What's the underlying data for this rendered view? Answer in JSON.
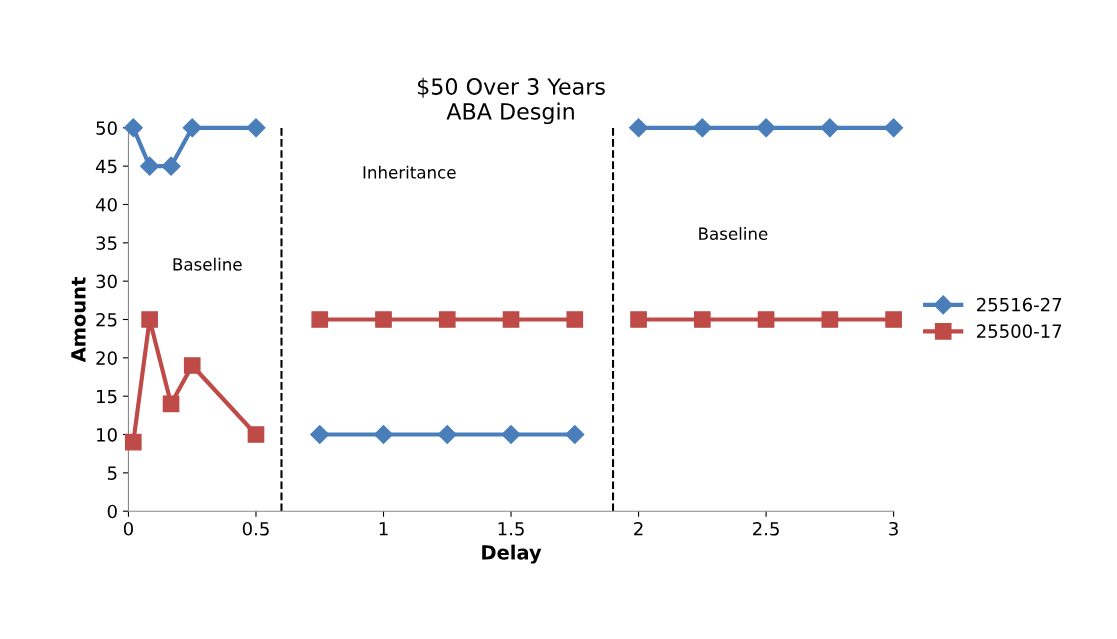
{
  "chart_data": {
    "type": "line",
    "title": "$50 Over 3 Years\nABA Desgin",
    "xlabel": "Delay",
    "ylabel": "Amount",
    "x": [
      0.019,
      0.083,
      0.167,
      0.25,
      0.5,
      0.62,
      0.75,
      1,
      1.25,
      1.5,
      1.75,
      1.88,
      2,
      2.25,
      2.5,
      2.75,
      3
    ],
    "series": [
      {
        "name": "25516-27",
        "color": "#4a7ebb",
        "marker": "diamond",
        "values": [
          50,
          45,
          45,
          50,
          50,
          null,
          10,
          10,
          10,
          10,
          10,
          null,
          50,
          50,
          50,
          50,
          50
        ]
      },
      {
        "name": "25500-17",
        "color": "#be4b48",
        "marker": "square",
        "values": [
          9,
          25,
          14,
          19,
          10,
          null,
          25,
          25,
          25,
          25,
          25,
          null,
          25,
          25,
          25,
          25,
          25
        ]
      }
    ],
    "xlim": [
      0,
      3
    ],
    "xticks": [
      0,
      0.5,
      1,
      1.5,
      2,
      2.5,
      3
    ],
    "ylim": [
      0,
      50
    ],
    "yticks": [
      0,
      5,
      10,
      15,
      20,
      25,
      30,
      35,
      40,
      45,
      50
    ],
    "ref_lines": [
      {
        "axis": "x",
        "value": 0.6,
        "color": "#000000",
        "line_style": "dashed"
      },
      {
        "axis": "x",
        "value": 1.9,
        "color": "#000000",
        "line_style": "dashed"
      }
    ],
    "annotations": [
      "Baseline",
      "Inheritance",
      "Baseline"
    ],
    "legend": "right",
    "grid": false,
    "line_style": "solid"
  }
}
